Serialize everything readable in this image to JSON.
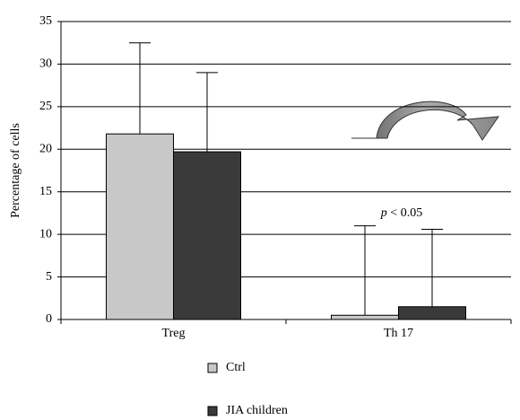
{
  "chart_data": {
    "type": "bar",
    "y_label": "Percentage of cells",
    "categories": [
      "Treg",
      "Th 17"
    ],
    "series": [
      {
        "name": "Ctrl",
        "color": "#c8c8c8",
        "values": [
          21.8,
          0.5
        ],
        "errors": [
          10.7,
          10.5
        ]
      },
      {
        "name": "JIA children",
        "color": "#3a3a3a",
        "values": [
          19.7,
          1.5
        ],
        "errors": [
          9.3,
          9.1
        ]
      }
    ],
    "ylim": [
      0,
      35
    ],
    "yticks": [
      0,
      5,
      10,
      15,
      20,
      25,
      30,
      35
    ],
    "grid": true,
    "annotation": {
      "variable": "p",
      "text": "< 0.05"
    }
  }
}
